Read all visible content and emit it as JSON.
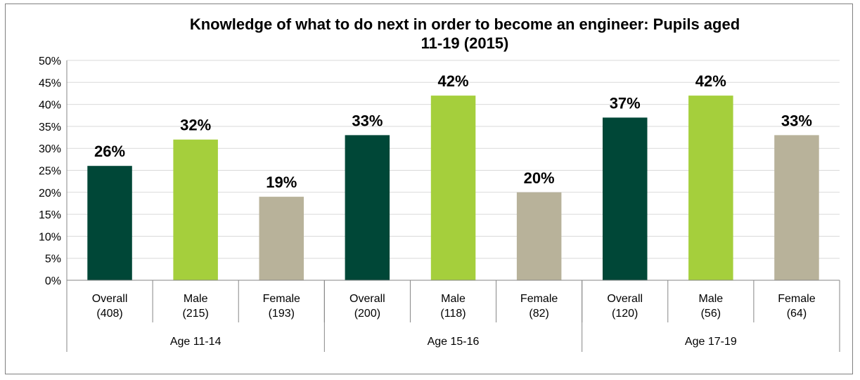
{
  "chart_data": {
    "type": "bar",
    "title_lines": [
      "Knowledge of what to do next in order to become an engineer: Pupils aged",
      "11-19 (2015)"
    ],
    "ylim": [
      0,
      50
    ],
    "y_ticks": [
      "0%",
      "5%",
      "10%",
      "15%",
      "20%",
      "25%",
      "30%",
      "35%",
      "40%",
      "45%",
      "50%"
    ],
    "grid": true,
    "legend": "none",
    "colors": {
      "Overall": "#004737",
      "Male": "#a5cf3c",
      "Female": "#b8b29a"
    },
    "groups": [
      {
        "label": "Age 11-14",
        "bars": [
          {
            "category": "Overall",
            "line1": "Overall",
            "line2": "(408)",
            "value": 26,
            "label": "26%"
          },
          {
            "category": "Male",
            "line1": "Male",
            "line2": "(215)",
            "value": 32,
            "label": "32%"
          },
          {
            "category": "Female",
            "line1": "Female",
            "line2": "(193)",
            "value": 19,
            "label": "19%"
          }
        ]
      },
      {
        "label": "Age 15-16",
        "bars": [
          {
            "category": "Overall",
            "line1": "Overall",
            "line2": "(200)",
            "value": 33,
            "label": "33%"
          },
          {
            "category": "Male",
            "line1": "Male",
            "line2": "(118)",
            "value": 42,
            "label": "42%"
          },
          {
            "category": "Female",
            "line1": "Female",
            "line2": "(82)",
            "value": 20,
            "label": "20%"
          }
        ]
      },
      {
        "label": "Age 17-19",
        "bars": [
          {
            "category": "Overall",
            "line1": "Overall",
            "line2": "(120)",
            "value": 37,
            "label": "37%"
          },
          {
            "category": "Male",
            "line1": "Male",
            "line2": "(56)",
            "value": 42,
            "label": "42%"
          },
          {
            "category": "Female",
            "line1": "Female",
            "line2": "(64)",
            "value": 33,
            "label": "33%"
          }
        ]
      }
    ]
  }
}
